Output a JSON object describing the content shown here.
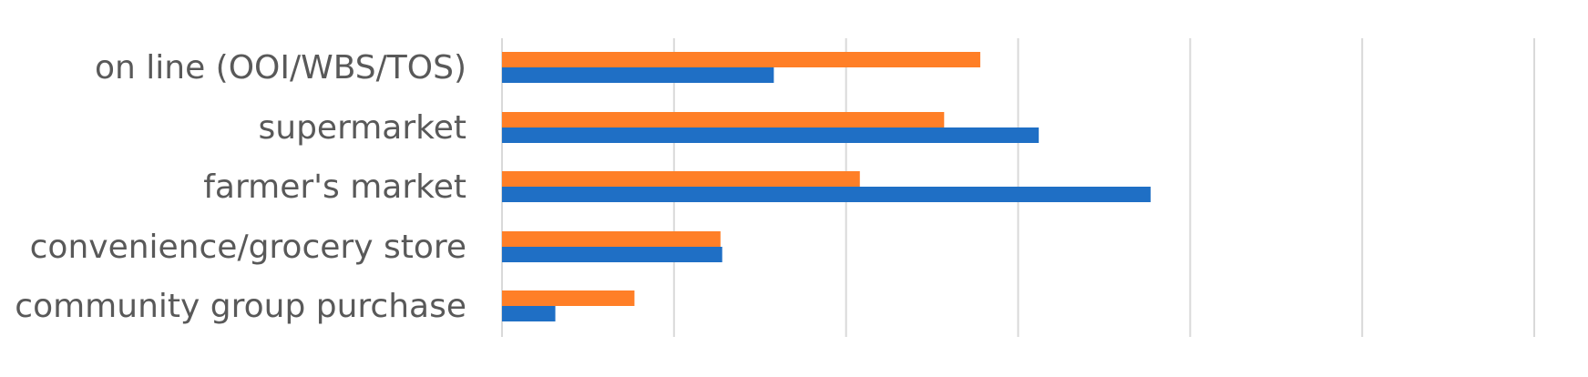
{
  "chart_data": {
    "type": "bar",
    "orientation": "horizontal",
    "categories": [
      "on line (OOI/WBS/TOS)",
      "supermarket",
      "farmer's market",
      "convenience/grocery store",
      "community group purchase"
    ],
    "series": [
      {
        "values": [
          27.8,
          25.7,
          20.8,
          12.7,
          7.7
        ],
        "color": "#ff7f27"
      },
      {
        "values": [
          15.8,
          31.2,
          37.7,
          12.8,
          3.1
        ],
        "color": "#1f6fc5"
      }
    ],
    "xlim": [
      0,
      60
    ],
    "x_gridline_step": 10,
    "grid": true,
    "legend": "none",
    "axis_tick_labels_shown": false
  }
}
